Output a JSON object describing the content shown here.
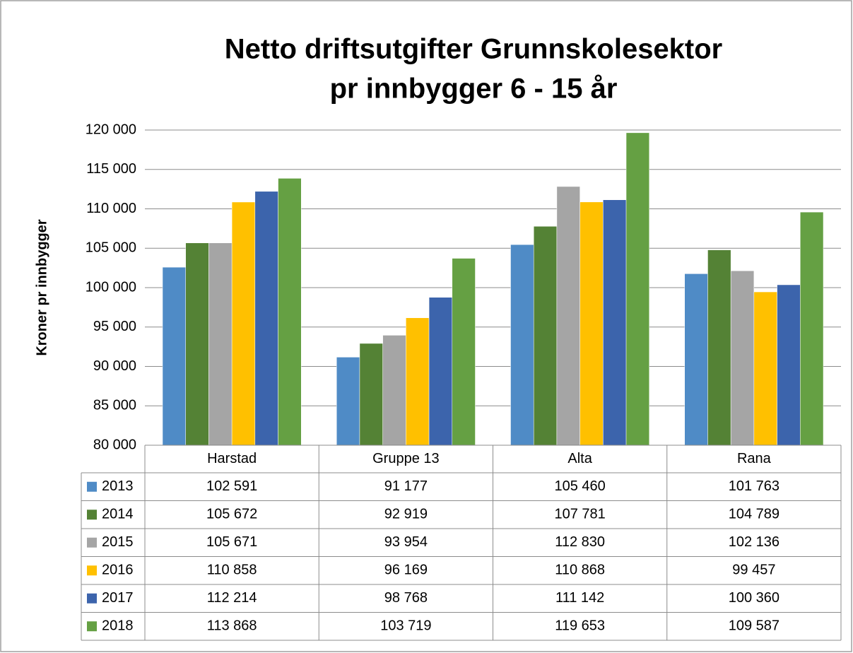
{
  "chart_data": {
    "type": "bar",
    "title": [
      "Netto driftsutgifter Grunnskolesektor",
      "pr innbygger 6 - 15 år"
    ],
    "y_label": "Kroner pr innbygger",
    "categories": [
      "Harstad",
      "Gruppe 13",
      "Alta",
      "Rana"
    ],
    "series": [
      {
        "name": "2013",
        "color": "#4f8bc6",
        "values": [
          102591,
          91177,
          105460,
          101763
        ],
        "value_labels": [
          "102 591",
          "91 177",
          "105 460",
          "101 763"
        ]
      },
      {
        "name": "2014",
        "color": "#548235",
        "values": [
          105672,
          92919,
          107781,
          104789
        ],
        "value_labels": [
          "105 672",
          "92 919",
          "107 781",
          "104 789"
        ]
      },
      {
        "name": "2015",
        "color": "#a5a5a5",
        "values": [
          105671,
          93954,
          112830,
          102136
        ],
        "value_labels": [
          "105 671",
          "93 954",
          "112 830",
          "102 136"
        ]
      },
      {
        "name": "2016",
        "color": "#ffc000",
        "values": [
          110858,
          96169,
          110868,
          99457
        ],
        "value_labels": [
          "110 858",
          "96 169",
          "110 868",
          "99 457"
        ]
      },
      {
        "name": "2017",
        "color": "#3c64ac",
        "values": [
          112214,
          98768,
          111142,
          100360
        ],
        "value_labels": [
          "112 214",
          "98 768",
          "111 142",
          "100 360"
        ]
      },
      {
        "name": "2018",
        "color": "#65a043",
        "values": [
          113868,
          103719,
          119653,
          109587
        ],
        "value_labels": [
          "113 868",
          "103 719",
          "119 653",
          "109 587"
        ]
      }
    ],
    "ylim": [
      80000,
      120000
    ],
    "yticks": [
      {
        "value": 80000,
        "label": "80 000"
      },
      {
        "value": 85000,
        "label": "85 000"
      },
      {
        "value": 90000,
        "label": "90 000"
      },
      {
        "value": 95000,
        "label": "95 000"
      },
      {
        "value": 100000,
        "label": "100 000"
      },
      {
        "value": 105000,
        "label": "105 000"
      },
      {
        "value": 110000,
        "label": "110 000"
      },
      {
        "value": 115000,
        "label": "115 000"
      },
      {
        "value": 120000,
        "label": "120 000"
      }
    ],
    "grid": true
  }
}
